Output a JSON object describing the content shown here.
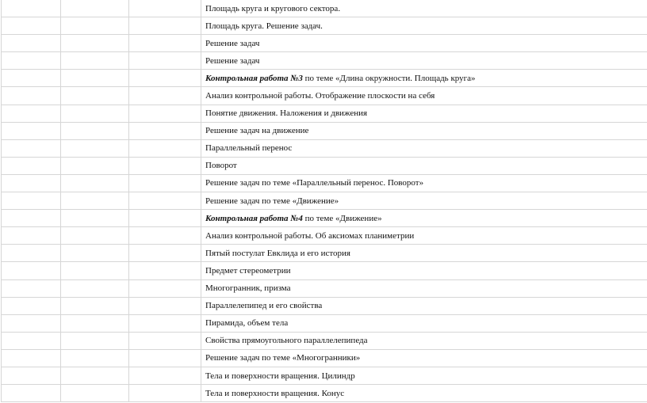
{
  "rows": [
    {
      "bold": "",
      "text": "Площадь круга и кругового сектора."
    },
    {
      "bold": "",
      "text": "Площадь круга. Решение задач."
    },
    {
      "bold": "",
      "text": "Решение задач"
    },
    {
      "bold": "",
      "text": "Решение задач"
    },
    {
      "bold": "Контрольная работа №3",
      "text": " по теме «Длина окружности. Площадь круга»"
    },
    {
      "bold": "",
      "text": "Анализ контрольной работы. Отображение плоскости на себя"
    },
    {
      "bold": "",
      "text": "Понятие движения. Наложения и движения"
    },
    {
      "bold": "",
      "text": "Решение задач на движение"
    },
    {
      "bold": "",
      "text": "Параллельный перенос"
    },
    {
      "bold": "",
      "text": "Поворот"
    },
    {
      "bold": "",
      "text": "Решение задач по теме «Параллельный перенос. Поворот»"
    },
    {
      "bold": "",
      "text": "Решение задач по теме «Движение»"
    },
    {
      "bold": "Контрольная работа №4",
      "text": " по теме «Движение»"
    },
    {
      "bold": "",
      "text": "Анализ контрольной работы. Об аксиомах планиметрии"
    },
    {
      "bold": "",
      "text": "Пятый постулат Евклида и его история"
    },
    {
      "bold": "",
      "text": "Предмет стереометрии"
    },
    {
      "bold": "",
      "text": "Многогранник, призма"
    },
    {
      "bold": "",
      "text": "Параллелепипед и его свойства"
    },
    {
      "bold": "",
      "text": "Пирамида, объем тела"
    },
    {
      "bold": "",
      "text": "Свойства прямоугольного параллелепипеда"
    },
    {
      "bold": "",
      "text": "Решение задач по теме «Многогранники»"
    },
    {
      "bold": "",
      "text": "Тела и поверхности вращения. Цилиндр"
    },
    {
      "bold": "",
      "text": "Тела и поверхности вращения. Конус"
    }
  ]
}
